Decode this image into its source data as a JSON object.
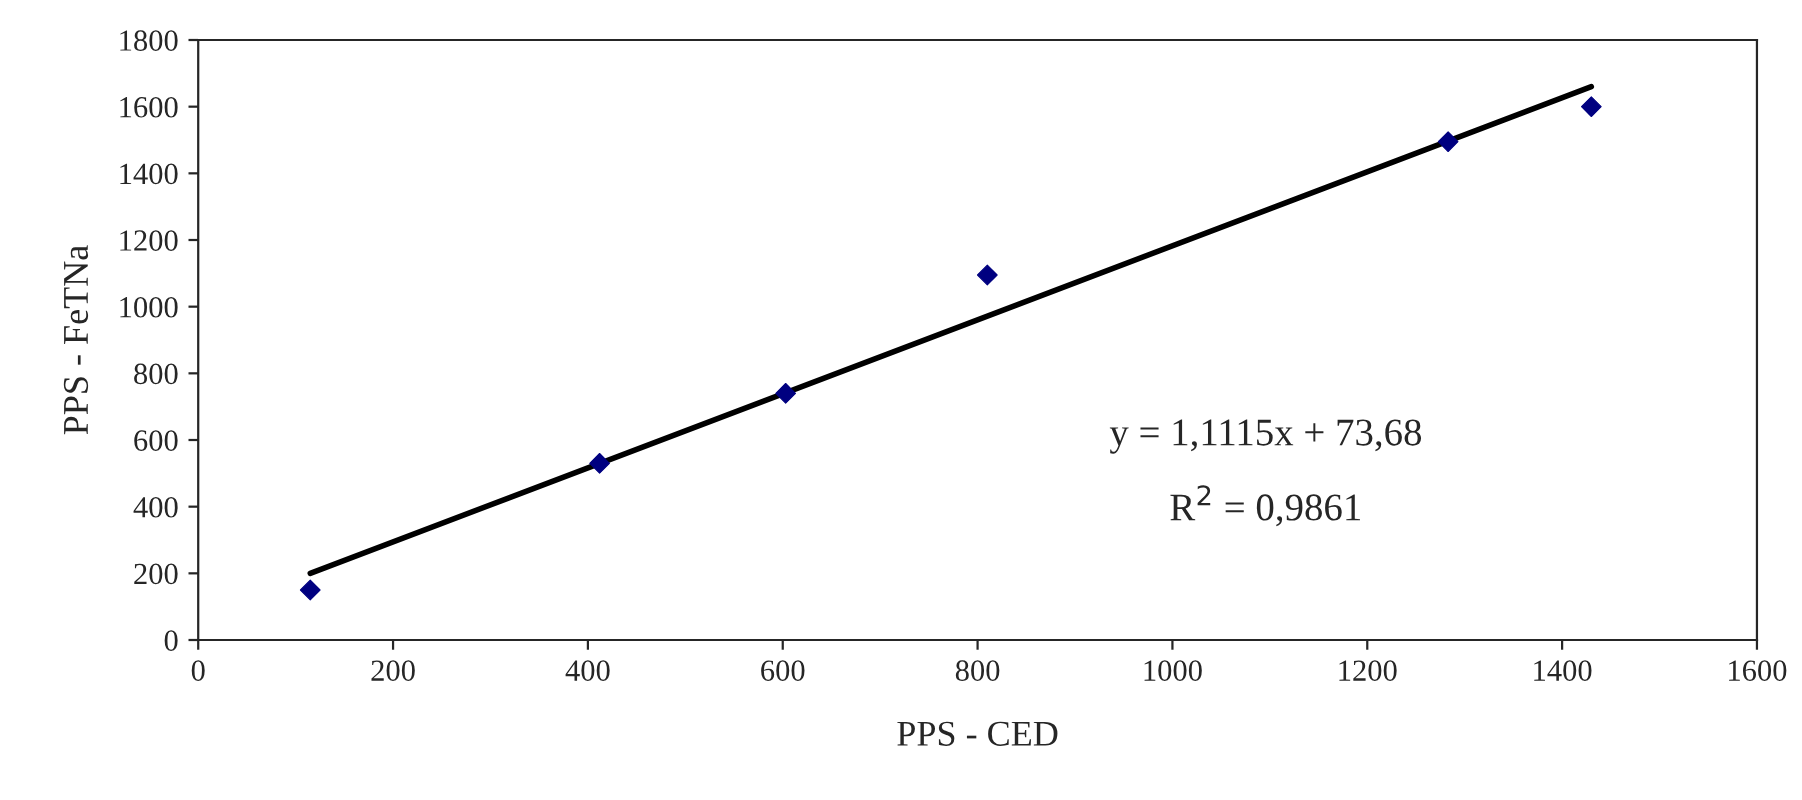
{
  "chart_data": {
    "type": "scatter",
    "xlabel": "PPS - CED",
    "ylabel": "PPS - FeTNa",
    "xlim": [
      0,
      1600
    ],
    "xticks": [
      0,
      200,
      400,
      600,
      800,
      1000,
      1200,
      1400,
      1600
    ],
    "ylim": [
      0,
      1800
    ],
    "yticks": [
      0,
      200,
      400,
      600,
      800,
      1000,
      1200,
      1400,
      1600,
      1800
    ],
    "grid": false,
    "legend": false,
    "series": [
      {
        "marker": "diamond",
        "color": "#000080",
        "x": [
          115,
          412,
          603,
          810,
          1283,
          1430
        ],
        "values": [
          150,
          530,
          740,
          1095,
          1495,
          1600
        ]
      },
      {
        "type": "line",
        "color": "#000000",
        "x": [
          115,
          1430
        ],
        "values": [
          200,
          1660
        ]
      }
    ],
    "annotations": [
      "y = 1,1115x + 73,68",
      "R$^{2}$ = 0,9861"
    ]
  }
}
